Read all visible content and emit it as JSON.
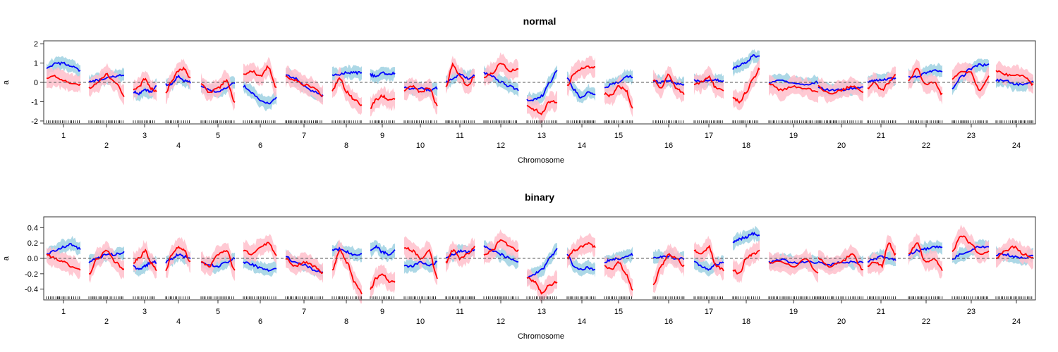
{
  "chart_data": [
    {
      "type": "line",
      "title": "normal",
      "xlabel": "Chromosome",
      "ylabel": "a",
      "ylim": [
        -2.15,
        2.15
      ],
      "yticks": [
        -2,
        -1,
        0,
        1,
        2
      ],
      "reference_line": 0,
      "grid": false,
      "legend": "none",
      "categories": [
        "1",
        "2",
        "3",
        "4",
        "5",
        "6",
        "7",
        "8",
        "9",
        "10",
        "11",
        "12",
        "13",
        "14",
        "15",
        "16",
        "17",
        "18",
        "19",
        "20",
        "21",
        "22",
        "23",
        "24"
      ],
      "colors": {
        "blue_line": "#0000ff",
        "blue_band": "#add8e6",
        "red_line": "#ff0000",
        "red_band": "#ffc0cb",
        "ref_line": "#555555"
      },
      "series": [
        {
          "color": "blue",
          "values": [
            [
              0.7,
              0.95,
              1.0,
              0.8,
              0.6
            ],
            [
              0.0,
              0.1,
              0.2,
              0.3,
              0.4
            ],
            [
              -0.5,
              -0.6,
              -0.4,
              -0.5,
              -0.2
            ],
            [
              -0.1,
              -0.1,
              0.3,
              0.1,
              0.0
            ],
            [
              -0.2,
              -0.4,
              -0.5,
              -0.3,
              0.0
            ],
            [
              -0.2,
              -0.5,
              -0.9,
              -1.1,
              -0.8
            ],
            [
              0.4,
              0.2,
              -0.2,
              -0.5,
              -0.7
            ],
            [
              0.4,
              0.4,
              0.5,
              0.5,
              0.5
            ],
            [
              0.4,
              0.3,
              0.5,
              0.4,
              0.5
            ],
            [
              -0.3,
              -0.3,
              -0.3,
              -0.4,
              -0.3
            ],
            [
              0.0,
              0.2,
              0.4,
              0.2,
              0.4
            ],
            [
              0.5,
              0.3,
              0.0,
              -0.2,
              -0.4
            ],
            [
              -0.9,
              -0.9,
              -0.7,
              0.0,
              0.6
            ],
            [
              0.2,
              -0.4,
              -0.8,
              -0.5,
              -0.6
            ],
            [
              -0.3,
              -0.1,
              0.0,
              0.3,
              0.3
            ],
            [
              0.1,
              0.0,
              0.1,
              -0.1,
              -0.1
            ],
            [
              0.1,
              0.0,
              0.1,
              0.1,
              0.1
            ],
            [
              0.7,
              0.9,
              1.0,
              1.4,
              1.3
            ],
            [
              0.0,
              0.1,
              0.0,
              -0.1,
              0.0
            ],
            [
              -0.3,
              -0.4,
              -0.4,
              -0.3,
              -0.3
            ],
            [
              0.0,
              0.1,
              0.1,
              0.2,
              0.2
            ],
            [
              0.3,
              0.3,
              0.5,
              0.6,
              0.6
            ],
            [
              -0.3,
              0.3,
              0.7,
              0.9,
              0.9
            ],
            [
              0.1,
              0.1,
              -0.1,
              -0.1,
              0.0
            ]
          ]
        },
        {
          "color": "red",
          "values": [
            [
              0.2,
              0.3,
              0.1,
              -0.1,
              -0.1
            ],
            [
              -0.3,
              0.0,
              0.4,
              0.0,
              -0.7
            ],
            [
              -0.4,
              -0.2,
              0.2,
              -0.3,
              -0.5
            ],
            [
              -0.6,
              0.1,
              0.6,
              0.7,
              0.2
            ],
            [
              -0.1,
              -0.5,
              -0.3,
              0.1,
              -1.0
            ],
            [
              0.4,
              0.6,
              0.3,
              0.8,
              -0.3
            ],
            [
              0.3,
              0.1,
              -0.1,
              -0.3,
              -0.7
            ],
            [
              -0.4,
              0.2,
              -0.5,
              -0.9,
              -1.2
            ],
            [
              -1.3,
              -0.9,
              -0.7,
              -0.9,
              -0.9
            ],
            [
              -0.4,
              -0.2,
              -0.5,
              -0.3,
              -1.2
            ],
            [
              -0.2,
              0.9,
              0.3,
              -0.2,
              0.3
            ],
            [
              0.3,
              0.5,
              1.0,
              0.6,
              0.7
            ],
            [
              -1.2,
              -1.4,
              -1.6,
              -1.0,
              -1.0
            ],
            [
              -0.2,
              0.5,
              0.7,
              0.8,
              0.8
            ],
            [
              -0.6,
              -0.7,
              -0.2,
              -0.4,
              -1.3
            ],
            [
              0.1,
              -0.3,
              0.4,
              -0.3,
              -0.6
            ],
            [
              -0.1,
              0.0,
              0.3,
              -0.3,
              -0.4
            ],
            [
              -0.8,
              -1.0,
              -0.5,
              0.2,
              0.7
            ],
            [
              -0.1,
              -0.4,
              -0.2,
              -0.3,
              -0.5
            ],
            [
              -0.2,
              -0.6,
              -0.4,
              -0.2,
              -0.5
            ],
            [
              -0.3,
              0.0,
              -0.4,
              0.0,
              0.4
            ],
            [
              0.1,
              0.7,
              -0.1,
              0.0,
              -0.6
            ],
            [
              0.2,
              0.6,
              0.5,
              -0.4,
              0.3
            ],
            [
              0.6,
              0.4,
              0.4,
              0.3,
              -0.1
            ]
          ]
        }
      ]
    },
    {
      "type": "line",
      "title": "binary",
      "xlabel": "Chromosome",
      "ylabel": "a",
      "ylim": [
        -0.54,
        0.54
      ],
      "yticks": [
        -0.4,
        -0.2,
        0.0,
        0.2,
        0.4
      ],
      "reference_line": 0,
      "grid": false,
      "legend": "none",
      "categories": [
        "1",
        "2",
        "3",
        "4",
        "5",
        "6",
        "7",
        "8",
        "9",
        "10",
        "11",
        "12",
        "13",
        "14",
        "15",
        "16",
        "17",
        "18",
        "19",
        "20",
        "21",
        "22",
        "23",
        "24"
      ],
      "colors": {
        "blue_line": "#0000ff",
        "blue_band": "#add8e6",
        "red_line": "#ff0000",
        "red_band": "#ffc0cb",
        "ref_line": "#555555"
      },
      "series": [
        {
          "color": "blue",
          "values": [
            [
              0.05,
              0.1,
              0.15,
              0.18,
              0.12
            ],
            [
              -0.05,
              0.0,
              0.05,
              0.05,
              0.08
            ],
            [
              -0.1,
              -0.15,
              -0.1,
              -0.05,
              -0.05
            ],
            [
              -0.05,
              0.0,
              0.05,
              0.02,
              0.0
            ],
            [
              -0.05,
              -0.08,
              -0.1,
              -0.05,
              0.0
            ],
            [
              -0.05,
              -0.08,
              -0.12,
              -0.15,
              -0.12
            ],
            [
              0.02,
              -0.05,
              -0.08,
              -0.15,
              -0.18
            ],
            [
              0.1,
              0.12,
              0.08,
              0.05,
              0.05
            ],
            [
              0.12,
              0.15,
              0.08,
              0.05,
              0.1
            ],
            [
              -0.1,
              -0.1,
              -0.05,
              -0.1,
              -0.05
            ],
            [
              0.0,
              0.05,
              0.1,
              0.08,
              0.12
            ],
            [
              0.15,
              0.1,
              0.05,
              0.0,
              -0.05
            ],
            [
              -0.25,
              -0.2,
              -0.15,
              0.0,
              0.12
            ],
            [
              0.05,
              -0.1,
              -0.15,
              -0.12,
              -0.15
            ],
            [
              -0.05,
              -0.02,
              0.0,
              0.02,
              0.05
            ],
            [
              0.0,
              0.02,
              0.03,
              0.0,
              0.0
            ],
            [
              -0.05,
              -0.1,
              -0.15,
              -0.08,
              -0.05
            ],
            [
              0.2,
              0.25,
              0.28,
              0.32,
              0.3
            ],
            [
              -0.05,
              -0.02,
              -0.05,
              -0.05,
              -0.05
            ],
            [
              -0.05,
              -0.08,
              -0.05,
              -0.05,
              -0.05
            ],
            [
              -0.05,
              0.0,
              0.02,
              0.0,
              -0.02
            ],
            [
              0.05,
              0.1,
              0.12,
              0.15,
              0.15
            ],
            [
              0.0,
              0.05,
              0.1,
              0.15,
              0.15
            ],
            [
              0.05,
              0.05,
              0.02,
              0.0,
              0.05
            ]
          ]
        },
        {
          "color": "red",
          "values": [
            [
              0.05,
              0.0,
              -0.05,
              -0.1,
              -0.15
            ],
            [
              -0.2,
              0.0,
              0.1,
              -0.05,
              -0.15
            ],
            [
              -0.05,
              0.0,
              0.1,
              -0.05,
              -0.15
            ],
            [
              -0.15,
              0.05,
              0.15,
              0.1,
              -0.05
            ],
            [
              -0.05,
              -0.1,
              0.05,
              0.1,
              -0.15
            ],
            [
              0.1,
              0.05,
              0.15,
              0.2,
              0.05
            ],
            [
              0.0,
              -0.1,
              -0.05,
              -0.1,
              -0.2
            ],
            [
              -0.15,
              0.1,
              -0.05,
              -0.3,
              -0.45
            ],
            [
              -0.4,
              -0.25,
              -0.2,
              -0.3,
              -0.3
            ],
            [
              0.15,
              0.1,
              0.0,
              0.1,
              -0.25
            ],
            [
              -0.05,
              0.1,
              0.0,
              0.05,
              0.15
            ],
            [
              0.05,
              0.1,
              0.25,
              0.15,
              0.1
            ],
            [
              -0.25,
              -0.3,
              -0.45,
              -0.35,
              -0.3
            ],
            [
              0.0,
              0.1,
              0.15,
              0.2,
              0.15
            ],
            [
              -0.1,
              -0.15,
              -0.05,
              -0.2,
              -0.4
            ],
            [
              -0.35,
              -0.1,
              0.05,
              0.0,
              -0.1
            ],
            [
              0.1,
              0.05,
              0.15,
              -0.1,
              -0.15
            ],
            [
              -0.15,
              -0.2,
              0.0,
              0.05,
              0.1
            ],
            [
              -0.05,
              -0.05,
              -0.1,
              0.0,
              -0.2
            ],
            [
              0.0,
              -0.1,
              -0.05,
              0.05,
              -0.15
            ],
            [
              -0.1,
              -0.05,
              -0.1,
              0.2,
              0.05
            ],
            [
              0.05,
              0.2,
              -0.05,
              0.0,
              -0.15
            ],
            [
              0.1,
              0.3,
              0.2,
              0.05,
              0.1
            ],
            [
              0.0,
              0.1,
              0.15,
              0.05,
              0.0
            ]
          ]
        }
      ]
    }
  ]
}
